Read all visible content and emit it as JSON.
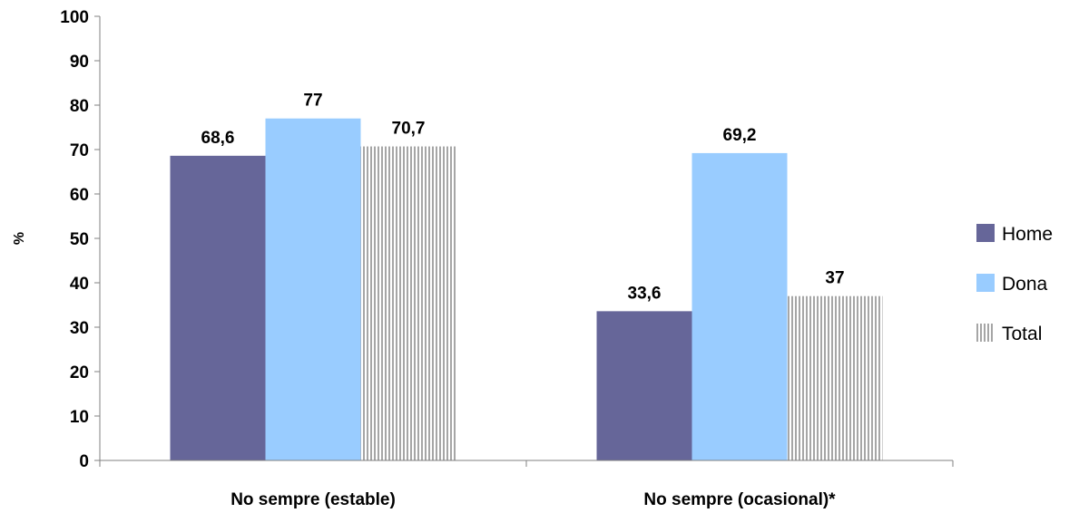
{
  "chart_data": {
    "type": "bar",
    "categories": [
      "No sempre (estable)",
      "No sempre (ocasional)*"
    ],
    "series": [
      {
        "name": "Home",
        "values": [
          68.6,
          33.6
        ],
        "labels": [
          "68,6",
          "33,6"
        ],
        "color": "#666699",
        "pattern": "solid"
      },
      {
        "name": "Dona",
        "values": [
          77,
          69.2
        ],
        "labels": [
          "77",
          "69,2"
        ],
        "color": "#99ccff",
        "pattern": "solid"
      },
      {
        "name": "Total",
        "values": [
          70.7,
          37
        ],
        "labels": [
          "70,7",
          "37"
        ],
        "color": "#a6a6a6",
        "pattern": "vertical-lines"
      }
    ],
    "ylabel": "%",
    "ylim": [
      0,
      100
    ],
    "yticks": [
      0,
      10,
      20,
      30,
      40,
      50,
      60,
      70,
      80,
      90,
      100
    ],
    "grid": false,
    "legend_position": "right"
  }
}
